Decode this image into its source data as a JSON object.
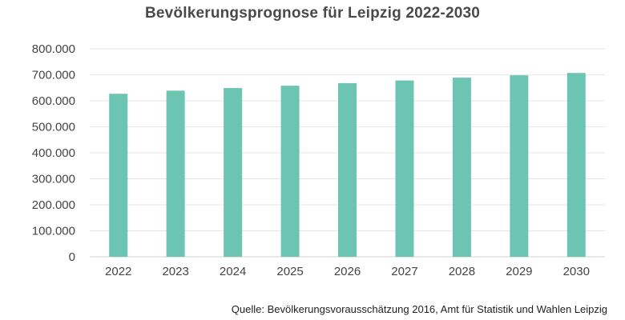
{
  "chart_data": {
    "type": "bar",
    "title": "Bevölkerungsprognose für Leipzig 2022-2030",
    "categories": [
      "2022",
      "2023",
      "2024",
      "2025",
      "2026",
      "2027",
      "2028",
      "2029",
      "2030"
    ],
    "values": [
      627000,
      639000,
      649000,
      658000,
      668000,
      678000,
      689000,
      698000,
      707000
    ],
    "ylim": [
      0,
      800000
    ],
    "yticks": [
      0,
      100000,
      200000,
      300000,
      400000,
      500000,
      600000,
      700000,
      800000
    ],
    "ytick_labels": [
      "0",
      "100.000",
      "200.000",
      "300.000",
      "400.000",
      "500.000",
      "600.000",
      "700.000",
      "800.000"
    ],
    "xlabel": "",
    "ylabel": "",
    "grid": true,
    "bar_color": "#6cc4b2"
  },
  "source_note": "Quelle: Bevölkerungsvorausschätzung 2016, Amt für Statistik und Wahlen Leipzig"
}
